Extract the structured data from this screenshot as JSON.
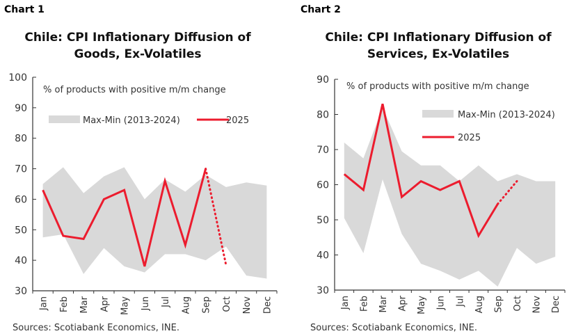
{
  "chart_data": [
    {
      "label": "Chart 1",
      "type": "area",
      "title": "Chile: CPI Inflationary Diffusion of Goods, Ex-Volatiles",
      "annotation": "% of products with positive m/m change",
      "source": "Sources: Scotiabank Economics, INE.",
      "categories": [
        "Jan",
        "Feb",
        "Mar",
        "Apr",
        "May",
        "Jun",
        "Jul",
        "Aug",
        "Sep",
        "Oct",
        "Nov",
        "Dec"
      ],
      "ylim": [
        30,
        100
      ],
      "yticks": [
        "30",
        "40",
        "50",
        "60",
        "70",
        "80",
        "90",
        "100"
      ],
      "legend_placement": "top",
      "series": [
        {
          "name": "Max-Min (2013-2024)",
          "type": "band",
          "color": "#d9d9d9",
          "max": [
            65,
            70.5,
            62,
            67.5,
            70.5,
            60,
            66.5,
            62.5,
            68,
            64,
            65.5,
            64.5
          ],
          "min": [
            47.5,
            48.5,
            35.5,
            44,
            38,
            36,
            42,
            42,
            40,
            44.5,
            35,
            34
          ]
        },
        {
          "name": "2025",
          "type": "line",
          "color": "#ec1c2e",
          "values": [
            63,
            48,
            47,
            60,
            63,
            38,
            66,
            45,
            70,
            null,
            null,
            null
          ],
          "projection": {
            "from": "Sep",
            "to": "Oct",
            "values": [
              70,
              38.5
            ],
            "style": "dotted"
          }
        }
      ]
    },
    {
      "label": "Chart 2",
      "type": "area",
      "title": "Chile: CPI Inflationary Diffusion of Services, Ex-Volatiles",
      "annotation": "% of products with positive m/m change",
      "source": "Sources: Scotiabank Economics, INE.",
      "categories": [
        "Jan",
        "Feb",
        "Mar",
        "Apr",
        "May",
        "Jun",
        "Jul",
        "Aug",
        "Sep",
        "Oct",
        "Nov",
        "Dec"
      ],
      "ylim": [
        30,
        90
      ],
      "yticks": [
        "30",
        "40",
        "50",
        "60",
        "70",
        "80",
        "90"
      ],
      "legend_placement": "top-right",
      "series": [
        {
          "name": "Max-Min (2013-2024)",
          "type": "band",
          "color": "#d9d9d9",
          "max": [
            72,
            67.5,
            82,
            69.5,
            65.5,
            65.5,
            61,
            65.5,
            61,
            63,
            61,
            61
          ],
          "min": [
            50.5,
            40.5,
            61.5,
            46,
            37.5,
            35.5,
            33,
            35.5,
            31,
            42,
            37.5,
            39.5
          ]
        },
        {
          "name": "2025",
          "type": "line",
          "color": "#ec1c2e",
          "values": [
            63,
            58.5,
            83,
            56.5,
            61,
            58.5,
            61,
            45.5,
            54.5,
            null,
            null,
            null
          ],
          "projection": {
            "from": "Sep",
            "to": "Oct",
            "values": [
              54.5,
              61
            ],
            "style": "dotted"
          }
        }
      ]
    }
  ]
}
